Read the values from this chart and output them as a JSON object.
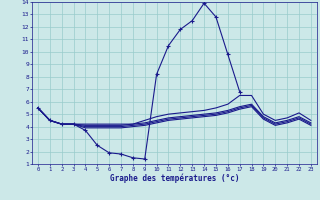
{
  "xlabel": "Graphe des températures (°c)",
  "bg_color": "#cce8e8",
  "line_color": "#1a1a8c",
  "grid_color": "#99cccc",
  "xlim": [
    -0.5,
    23.5
  ],
  "ylim": [
    1,
    14
  ],
  "xticks": [
    0,
    1,
    2,
    3,
    4,
    5,
    6,
    7,
    8,
    9,
    10,
    11,
    12,
    13,
    14,
    15,
    16,
    17,
    18,
    19,
    20,
    21,
    22,
    23
  ],
  "yticks": [
    1,
    2,
    3,
    4,
    5,
    6,
    7,
    8,
    9,
    10,
    11,
    12,
    13,
    14
  ],
  "line1_x": [
    0,
    1,
    2,
    3,
    4,
    5,
    6,
    7,
    8,
    9,
    10,
    11,
    12,
    13,
    14,
    15,
    16,
    17,
    18,
    19,
    20,
    21,
    22,
    23
  ],
  "line1_y": [
    5.5,
    4.5,
    4.2,
    4.2,
    3.7,
    2.5,
    1.9,
    1.8,
    1.5,
    1.4,
    8.2,
    10.5,
    11.8,
    12.5,
    13.9,
    12.8,
    9.8,
    6.8,
    null,
    null,
    null,
    null,
    null,
    null
  ],
  "line2_x": [
    0,
    1,
    2,
    3,
    4,
    5,
    6,
    7,
    8,
    9,
    10,
    11,
    12,
    13,
    14,
    15,
    16,
    17,
    18,
    19,
    20,
    21,
    22,
    23
  ],
  "line2_y": [
    5.5,
    4.5,
    4.2,
    4.2,
    4.2,
    4.2,
    4.2,
    4.2,
    4.2,
    4.5,
    4.8,
    5.0,
    5.1,
    5.2,
    5.3,
    5.5,
    5.8,
    6.5,
    6.5,
    5.0,
    4.5,
    4.7,
    5.1,
    4.5
  ],
  "line3_x": [
    0,
    1,
    2,
    3,
    4,
    5,
    6,
    7,
    8,
    9,
    10,
    11,
    12,
    13,
    14,
    15,
    16,
    17,
    18,
    19,
    20,
    21,
    22,
    23
  ],
  "line3_y": [
    5.5,
    4.5,
    4.2,
    4.2,
    4.1,
    4.1,
    4.1,
    4.1,
    4.2,
    4.3,
    4.5,
    4.7,
    4.8,
    4.9,
    5.0,
    5.1,
    5.3,
    5.6,
    5.8,
    4.8,
    4.3,
    4.5,
    4.8,
    4.3
  ],
  "line4_x": [
    0,
    1,
    2,
    3,
    4,
    5,
    6,
    7,
    8,
    9,
    10,
    11,
    12,
    13,
    14,
    15,
    16,
    17,
    18,
    19,
    20,
    21,
    22,
    23
  ],
  "line4_y": [
    5.5,
    4.5,
    4.2,
    4.2,
    4.0,
    4.0,
    4.0,
    4.0,
    4.1,
    4.2,
    4.4,
    4.6,
    4.7,
    4.8,
    4.9,
    5.0,
    5.2,
    5.5,
    5.7,
    4.7,
    4.2,
    4.4,
    4.7,
    4.2
  ],
  "line5_x": [
    0,
    1,
    2,
    3,
    4,
    5,
    6,
    7,
    8,
    9,
    10,
    11,
    12,
    13,
    14,
    15,
    16,
    17,
    18,
    19,
    20,
    21,
    22,
    23
  ],
  "line5_y": [
    5.5,
    4.5,
    4.2,
    4.2,
    3.9,
    3.9,
    3.9,
    3.9,
    4.0,
    4.1,
    4.3,
    4.5,
    4.6,
    4.7,
    4.8,
    4.9,
    5.1,
    5.4,
    5.6,
    4.6,
    4.1,
    4.3,
    4.6,
    4.1
  ]
}
